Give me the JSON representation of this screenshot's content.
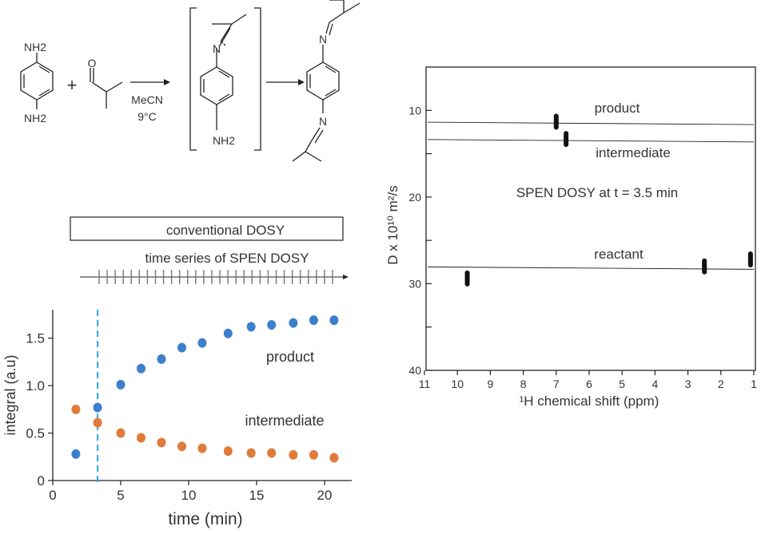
{
  "scheme": {
    "reactant_top_label": "NH2",
    "reactant_bottom_label": "NH2",
    "plus": "+",
    "aldehyde_o": "O",
    "condition_solvent": "MeCN",
    "condition_temp": "9°C",
    "intermediate_n": "N",
    "intermediate_nh2": "NH2",
    "product_n_top": "N",
    "product_n_bottom": "N"
  },
  "timeline": {
    "conventional_label": "conventional DOSY",
    "spen_label": "time series of SPEN DOSY",
    "tick_count": 30
  },
  "colors": {
    "product": "#3c7fcc",
    "intermediate": "#e07b39",
    "marker": "#29a8e0",
    "annotation": "#29a8e0",
    "ink": "#222222"
  },
  "chart_data": [
    {
      "type": "scatter",
      "xlabel": "time (min)",
      "ylabel": "integral (a.u)",
      "xlim": [
        0,
        22
      ],
      "ylim": [
        0,
        1.8
      ],
      "xticks": [
        "0",
        "5",
        "10",
        "15",
        "20"
      ],
      "yticks": [
        "0",
        "0.5",
        "1.0",
        "1.5"
      ],
      "vline_x": 3.3,
      "series": [
        {
          "name": "product",
          "x": [
            1.7,
            3.3,
            5.0,
            6.5,
            8.0,
            9.5,
            11.0,
            12.9,
            14.6,
            16.1,
            17.7,
            19.2,
            20.7
          ],
          "y": [
            0.28,
            0.77,
            1.01,
            1.18,
            1.28,
            1.4,
            1.45,
            1.55,
            1.62,
            1.64,
            1.66,
            1.69,
            1.69
          ]
        },
        {
          "name": "intermediate",
          "x": [
            1.7,
            3.3,
            5.0,
            6.5,
            8.0,
            9.5,
            11.0,
            12.9,
            14.6,
            16.1,
            17.7,
            19.2,
            20.7
          ],
          "y": [
            0.75,
            0.61,
            0.5,
            0.45,
            0.4,
            0.36,
            0.34,
            0.31,
            0.29,
            0.29,
            0.27,
            0.27,
            0.24
          ]
        }
      ]
    },
    {
      "type": "scatter",
      "xlabel": "¹H chemical shift (ppm)",
      "ylabel": "D x 10¹⁰ m²/s",
      "xlim": [
        11,
        1
      ],
      "ylim": [
        40,
        5
      ],
      "xticks": [
        "11",
        "10",
        "9",
        "8",
        "7",
        "6",
        "5",
        "4",
        "3",
        "2",
        "1"
      ],
      "yticks": [
        "10",
        "20",
        "30",
        "40"
      ],
      "annotation": "SPEN DOSY at t = 3.5 min",
      "series": [
        {
          "name": "product",
          "peaks": [
            {
              "x": 7.0,
              "y": 11.3
            }
          ],
          "line_y": 11.5
        },
        {
          "name": "intermediate",
          "peaks": [
            {
              "x": 6.7,
              "y": 13.3
            }
          ],
          "line_y": 13.5
        },
        {
          "name": "reactant",
          "peaks": [
            {
              "x": 9.7,
              "y": 29.4
            },
            {
              "x": 2.5,
              "y": 28.0
            },
            {
              "x": 1.1,
              "y": 27.2
            }
          ],
          "line_y": 28.2
        }
      ]
    }
  ]
}
